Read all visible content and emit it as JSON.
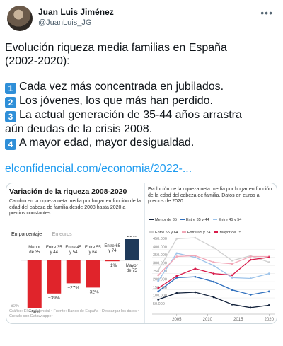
{
  "user": {
    "name": "Juan Luis Jiménez",
    "handle": "@JuanLuis_JG",
    "more_icon": "more-dots-icon"
  },
  "tweet": {
    "line1": "Evolución riqueza media familias en España",
    "line2": "(2002-2020):",
    "items": [
      {
        "num": "1",
        "line1": "Cada vez más concentrada en jubilados.",
        "line2": ""
      },
      {
        "num": "2",
        "line1": "Los jóvenes, los que más han perdido.",
        "line2": ""
      },
      {
        "num": "3",
        "line1": "La actual generación de 35-44 años arrastra",
        "line2": "aún deudas de la crisis 2008."
      },
      {
        "num": "4",
        "line1": "A mayor edad, mayor desigualdad.",
        "line2": ""
      }
    ],
    "link": "elconfidencial.com/economia/2022-..."
  },
  "colors": {
    "link": "#1d9bf0",
    "bar_negative": "#e0242b",
    "bar_positive": "#1f3a5a",
    "keycap": "#2f8fd8"
  },
  "card_left": {
    "title": "Variación de la riqueza 2008-2020",
    "subtitle": "Cambio en la riqueza neta media por hogar en función de la edad del cabeza de familia desde 2008 hasta 2020 a precios constantes",
    "tab_active": "En porcentaje",
    "tab_inactive": "En euros",
    "axis_label": "-60%",
    "source": "Gráfico: El Confidencial • Fuente: Banco de España • Descargar los datos • Creado con Datawrapper"
  },
  "card_right": {
    "title": "Evolución de la riqueza neta media por hogar en función de la edad del cabeza de familia. Datos en euros a precios de 2020"
  },
  "chart_data": [
    {
      "type": "bar",
      "title": "Variación de la riqueza 2008-2020",
      "categories": [
        "Menor de 35",
        "Entre 35 y 44",
        "Entre 45 y 54",
        "Entre 55 y 64",
        "Entre 65 y 74",
        "Mayor de 75"
      ],
      "values": [
        -56,
        -39,
        -27,
        -32,
        -1,
        25
      ],
      "value_labels": [
        "−56%",
        "−39%",
        "−27%",
        "−32%",
        "−1%",
        "25%"
      ],
      "ylim": [
        -60,
        30
      ]
    },
    {
      "type": "line",
      "title": "Evolución de la riqueza neta media por hogar en función de la edad del cabeza de familia. Datos en euros a precios de 2020",
      "x": [
        2002,
        2005,
        2008,
        2011,
        2014,
        2017,
        2020
      ],
      "x_ticks": [
        "2005",
        "2010",
        "2015",
        "2020"
      ],
      "y_ticks": [
        "50.000",
        "100.000",
        "150.000",
        "200.000",
        "250.000",
        "300.000",
        "350.000",
        "400.000",
        "450.000"
      ],
      "ylim": [
        0,
        475000
      ],
      "xlim": [
        2001,
        2021
      ],
      "legend_position": "top",
      "series": [
        {
          "name": "Menor de 35",
          "color": "#14233c",
          "values": [
            90000,
            130000,
            135000,
            105000,
            60000,
            40000,
            55000
          ]
        },
        {
          "name": "Entre 35 y 44",
          "color": "#2f6fbd",
          "values": [
            140000,
            225000,
            230000,
            200000,
            150000,
            120000,
            140000
          ]
        },
        {
          "name": "Entre 45 y 54",
          "color": "#9cc3ea",
          "values": [
            205000,
            375000,
            350000,
            300000,
            225000,
            220000,
            250000
          ]
        },
        {
          "name": "Entre 55 y 64",
          "color": "#cfcfcf",
          "values": [
            270000,
            465000,
            470000,
            410000,
            330000,
            360000,
            320000
          ]
        },
        {
          "name": "Entre 65 y 74",
          "color": "#f2a8b8",
          "values": [
            240000,
            355000,
            360000,
            320000,
            310000,
            355000,
            355000
          ]
        },
        {
          "name": "Mayor de 75",
          "color": "#d81b4a",
          "values": [
            160000,
            235000,
            280000,
            250000,
            240000,
            335000,
            350000
          ]
        }
      ]
    }
  ]
}
